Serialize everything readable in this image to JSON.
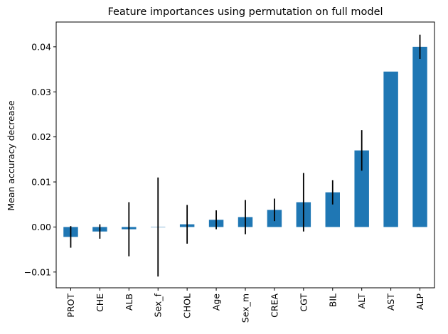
{
  "chart_data": {
    "type": "bar",
    "title": "Feature importances using permutation on full model",
    "xlabel": "",
    "ylabel": "Mean accuracy decrease",
    "categories": [
      "PROT",
      "CHE",
      "ALB",
      "Sex_f",
      "CHOL",
      "Age",
      "Sex_m",
      "CREA",
      "CGT",
      "BIL",
      "ALT",
      "AST",
      "ALP"
    ],
    "values": [
      -0.0022,
      -0.001,
      -0.0005,
      0.0,
      0.0006,
      0.0016,
      0.0022,
      0.0038,
      0.0055,
      0.0077,
      0.017,
      0.0345,
      0.04
    ],
    "errors": [
      0.0024,
      0.0016,
      0.006,
      0.011,
      0.0043,
      0.0021,
      0.0038,
      0.0025,
      0.0065,
      0.0027,
      0.0045,
      0.0,
      0.0027
    ],
    "ylim": [
      -0.0135,
      0.0455
    ],
    "yticks": [
      -0.01,
      0.0,
      0.01,
      0.02,
      0.03,
      0.04
    ],
    "ytick_labels": [
      "−0.01",
      "0.00",
      "0.01",
      "0.02",
      "0.03",
      "0.04"
    ],
    "bar_color": "#1f77b4",
    "error_color": "#000000",
    "grid": false,
    "legend": "none"
  }
}
